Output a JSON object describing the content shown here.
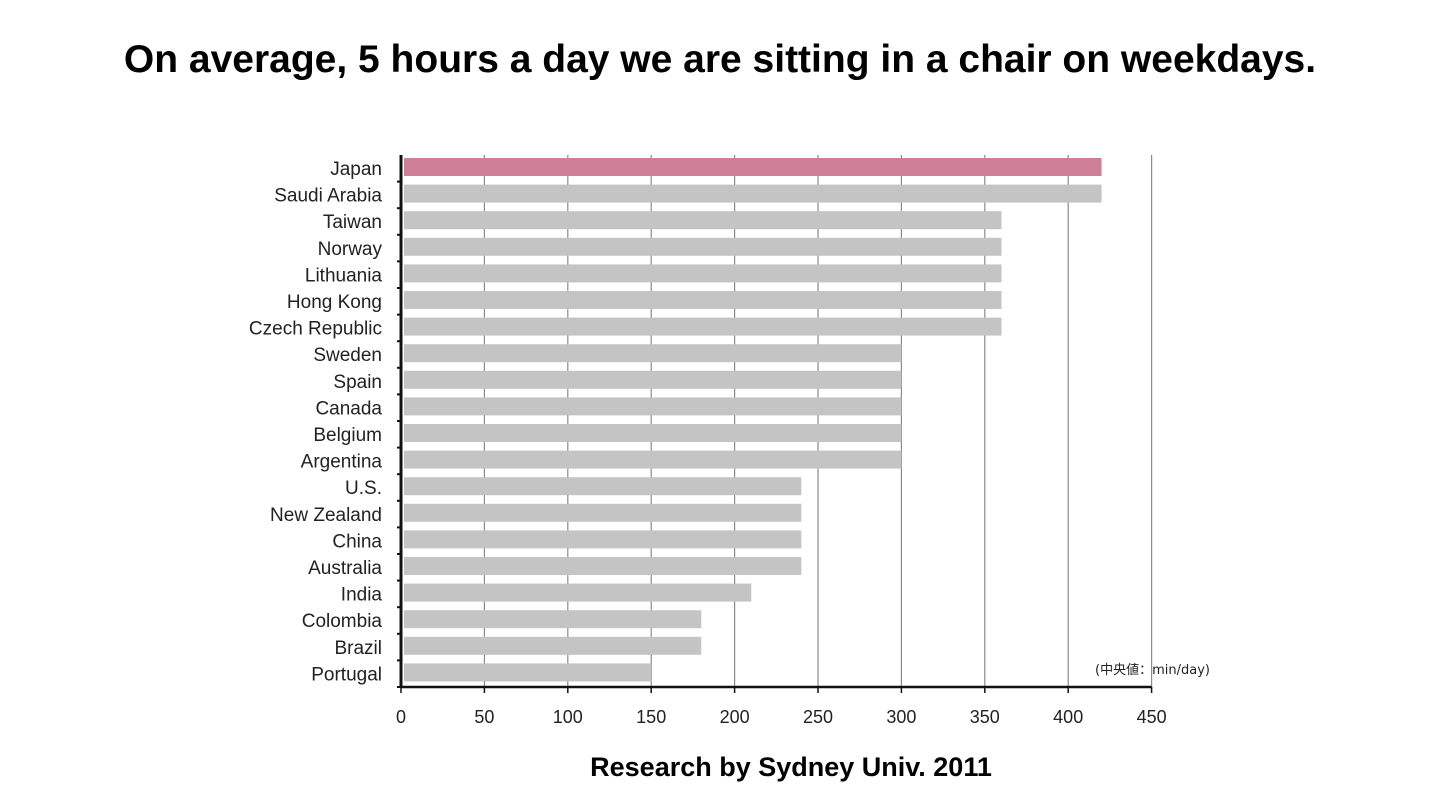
{
  "page": {
    "title": "On average, 5 hours a day we are sitting in a chair on weekdays.",
    "source": "Research by Sydney Univ. 2011"
  },
  "colors": {
    "highlight_bar": "#cd7f98",
    "default_bar": "#c4c4c4",
    "gridline": "#8a8a8a",
    "axis": "#111111",
    "background": "#ffffff"
  },
  "chart_data": {
    "type": "bar",
    "orientation": "horizontal",
    "title": "",
    "xlabel": "",
    "ylabel": "",
    "unit_note": "(中央値：min/day)",
    "categories": [
      "Japan",
      "Saudi Arabia",
      "Taiwan",
      "Norway",
      "Lithuania",
      "Hong Kong",
      "Czech Republic",
      "Sweden",
      "Spain",
      "Canada",
      "Belgium",
      "Argentina",
      "U.S.",
      "New Zealand",
      "China",
      "Australia",
      "India",
      "Colombia",
      "Brazil",
      "Portugal"
    ],
    "values": [
      420,
      420,
      360,
      360,
      360,
      360,
      360,
      300,
      300,
      300,
      300,
      300,
      240,
      240,
      240,
      240,
      210,
      180,
      180,
      150
    ],
    "highlight": [
      "Japan"
    ],
    "xlim": [
      0,
      450
    ],
    "xticks": [
      0,
      50,
      100,
      150,
      200,
      250,
      300,
      350,
      400,
      450
    ],
    "grid": true,
    "legend": "none"
  }
}
